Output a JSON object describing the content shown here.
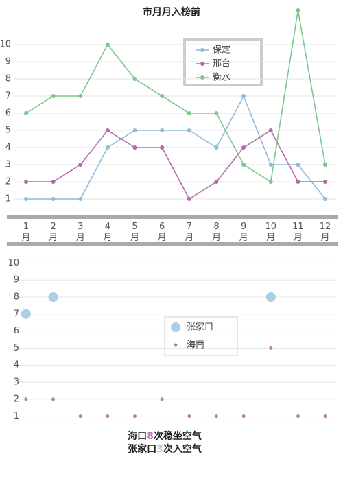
{
  "chart_data": [
    {
      "type": "line",
      "title": "市月月入榜前",
      "categories": [
        "1月",
        "2月",
        "3月",
        "4月",
        "5月",
        "6月",
        "7月",
        "8月",
        "9月",
        "10月",
        "11月",
        "12月"
      ],
      "series": [
        {
          "name": "保定",
          "color": "#8dbcd9",
          "values": [
            1,
            1,
            1,
            4,
            5,
            5,
            5,
            4,
            7,
            3,
            3,
            1
          ]
        },
        {
          "name": "邢台",
          "color": "#b46aa8",
          "values": [
            2,
            2,
            3,
            5,
            4,
            4,
            1,
            2,
            4,
            5,
            2,
            2
          ]
        },
        {
          "name": "衡水",
          "color": "#7cc68b",
          "values": [
            6,
            7,
            7,
            10,
            8,
            7,
            6,
            6,
            3,
            2,
            12,
            3
          ]
        }
      ],
      "ylim": [
        0.5,
        12.5
      ],
      "yticks": [
        1,
        2,
        3,
        4,
        5,
        6,
        7,
        8,
        9,
        10
      ],
      "grid": true
    },
    {
      "type": "scatter",
      "series": [
        {
          "name": "张家口",
          "color": "#a8cfe3",
          "marker_size": 7,
          "x": [
            1,
            2,
            10
          ],
          "values": [
            7,
            8,
            8
          ]
        },
        {
          "name": "海南",
          "color": "#c277b3",
          "marker_size": 2.5,
          "x": [
            1,
            2,
            3,
            4,
            5,
            6,
            7,
            8,
            9,
            10,
            11,
            12
          ],
          "values": [
            2,
            2,
            1,
            1,
            1,
            2,
            1,
            1,
            1,
            5,
            1,
            1
          ]
        }
      ],
      "xlim": [
        0.55,
        12.4
      ],
      "ylim": [
        0.5,
        10.5
      ],
      "yticks": [
        1,
        2,
        3,
        4,
        5,
        6,
        7,
        8,
        9,
        10
      ],
      "grid": true,
      "annotations": [
        "海口8次稳坐空气",
        "张家口3次入空气"
      ]
    }
  ]
}
